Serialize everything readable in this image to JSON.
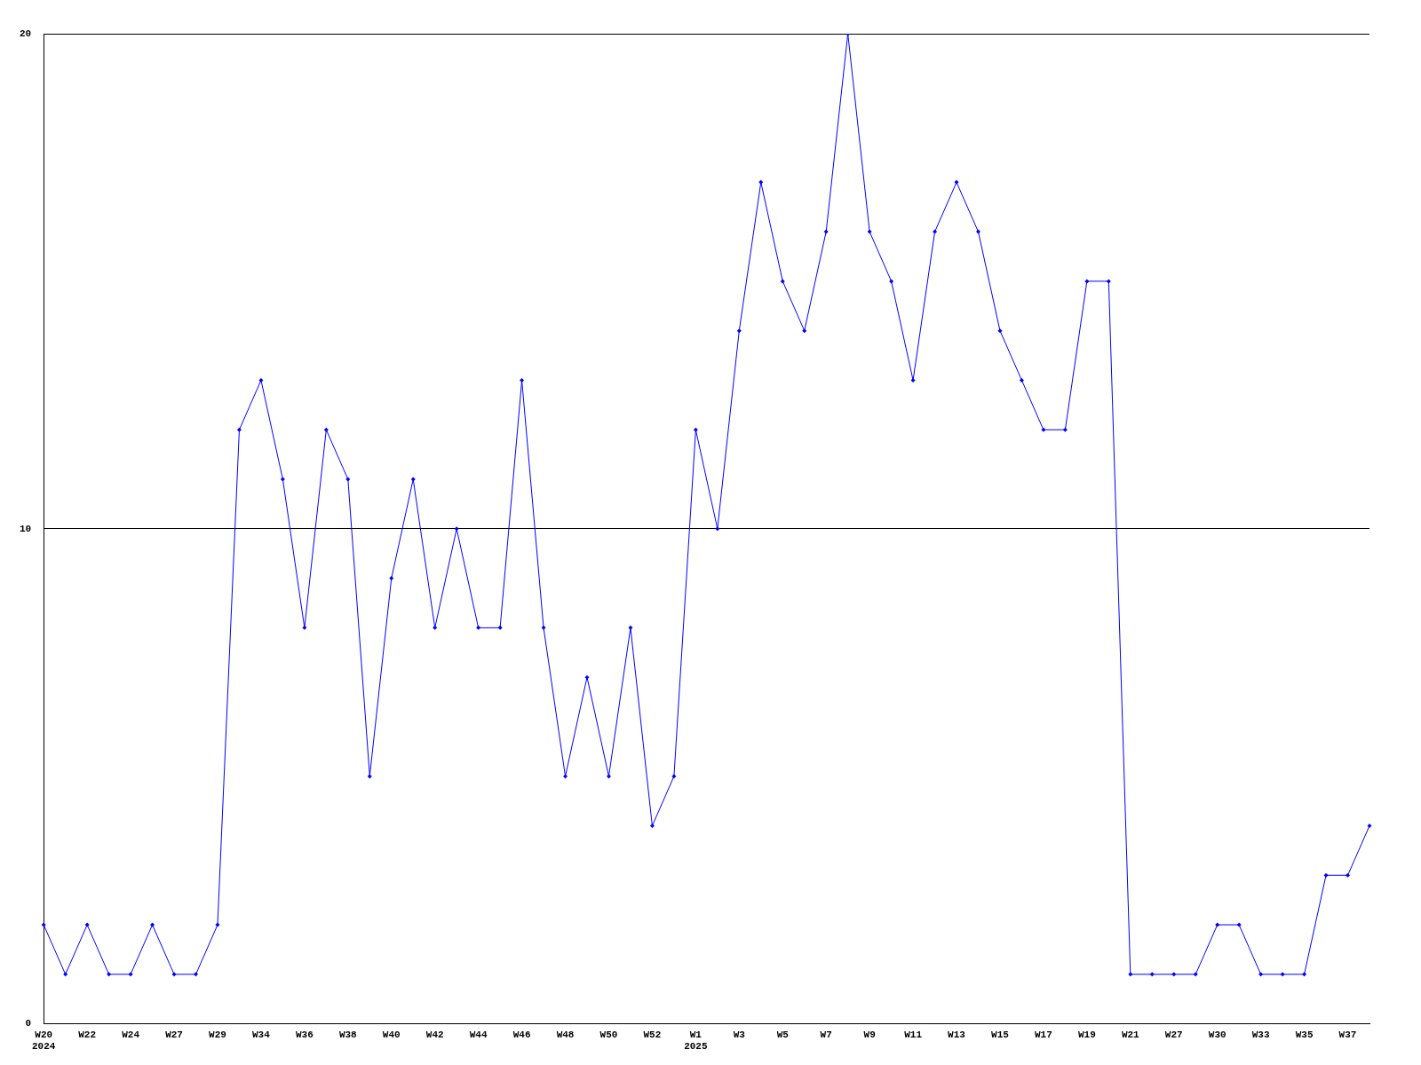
{
  "chart_data": {
    "type": "line",
    "categories": [
      "W20\n2024",
      null,
      "W22",
      null,
      "W24",
      null,
      "W27",
      null,
      "W29",
      null,
      "W34",
      null,
      "W36",
      null,
      "W38",
      null,
      "W40",
      null,
      "W42",
      null,
      "W44",
      null,
      "W46",
      null,
      "W48",
      null,
      "W50",
      null,
      "W52",
      null,
      "W1\n2025",
      null,
      "W3",
      null,
      "W5",
      null,
      "W7",
      null,
      "W9",
      null,
      "W11",
      null,
      "W13",
      null,
      "W15",
      null,
      "W17",
      null,
      "W19",
      null,
      "W21",
      null,
      "W27",
      null,
      "W30",
      null,
      "W33",
      null,
      "W35",
      null,
      "W37",
      null
    ],
    "series": [
      {
        "color": "#0000ff",
        "values": [
          2,
          1,
          2,
          1,
          1,
          2,
          1,
          1,
          2,
          12,
          13,
          11,
          8,
          12,
          11,
          5,
          9,
          11,
          8,
          10,
          8,
          8,
          13,
          8,
          5,
          7,
          5,
          8,
          4,
          5,
          12,
          10,
          14,
          17,
          15,
          14,
          16,
          20,
          16,
          15,
          13,
          16,
          17,
          16,
          14,
          13,
          12,
          12,
          15,
          15,
          1,
          1,
          1,
          1,
          2,
          2,
          1,
          1,
          1,
          3,
          3,
          4
        ]
      }
    ],
    "ylim": [
      0,
      20
    ],
    "yticks": [
      0,
      10,
      20
    ],
    "grid": "y",
    "legend": false,
    "marker": "diamond",
    "line_style": "solid"
  }
}
